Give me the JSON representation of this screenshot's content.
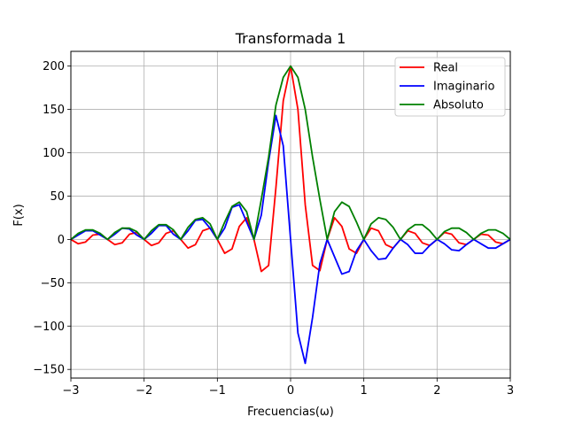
{
  "chart_data": {
    "type": "line",
    "title": "Transformada 1",
    "xlabel": "Frecuencias(ω)",
    "ylabel": "F(x)",
    "xlim": [
      -3,
      3
    ],
    "ylim": [
      -160,
      217
    ],
    "xticks": [
      -3,
      -2,
      -1,
      0,
      1,
      2,
      3
    ],
    "xtick_labels": [
      "−3",
      "−2",
      "−1",
      "0",
      "1",
      "2",
      "3"
    ],
    "yticks": [
      -150,
      -100,
      -50,
      0,
      50,
      100,
      150,
      200
    ],
    "ytick_labels": [
      "−150",
      "−100",
      "−50",
      "0",
      "50",
      "100",
      "150",
      "200"
    ],
    "grid": true,
    "legend_position": "top-right",
    "x": [
      -3.0,
      -2.9,
      -2.8,
      -2.7,
      -2.6,
      -2.5,
      -2.4,
      -2.3,
      -2.2,
      -2.1,
      -2.0,
      -1.9,
      -1.8,
      -1.7,
      -1.6,
      -1.5,
      -1.4,
      -1.3,
      -1.2,
      -1.1,
      -1.0,
      -0.9,
      -0.8,
      -0.7,
      -0.6,
      -0.5,
      -0.4,
      -0.3,
      -0.2,
      -0.1,
      0.0,
      0.1,
      0.2,
      0.3,
      0.4,
      0.5,
      0.6,
      0.7,
      0.8,
      0.9,
      1.0,
      1.1,
      1.2,
      1.3,
      1.4,
      1.5,
      1.6,
      1.7,
      1.8,
      1.9,
      2.0,
      2.1,
      2.2,
      2.3,
      2.4,
      2.5,
      2.6,
      2.7,
      2.8,
      2.9,
      3.0
    ],
    "series": [
      {
        "name": "Real",
        "color": "#ff0000",
        "values": [
          0,
          -5,
          -3,
          5,
          6,
          0,
          -6,
          -4,
          6,
          8,
          0,
          -7,
          -4,
          7,
          10,
          0,
          -10,
          -6,
          10,
          13,
          0,
          -16,
          -11,
          15,
          25,
          0,
          -37,
          -30,
          60,
          160,
          200,
          150,
          40,
          -30,
          -36,
          0,
          25,
          15,
          -11,
          -16,
          0,
          13,
          10,
          -6,
          -10,
          0,
          10,
          7,
          -4,
          -7,
          0,
          8,
          6,
          -4,
          -6,
          0,
          6,
          5,
          -3,
          -5,
          0
        ]
      },
      {
        "name": "Imaginario",
        "color": "#0000ff",
        "values": [
          0,
          5,
          10,
          10,
          5,
          0,
          6,
          13,
          12,
          5,
          0,
          7,
          16,
          16,
          6,
          0,
          10,
          22,
          23,
          13,
          0,
          13,
          37,
          40,
          20,
          0,
          28,
          90,
          143,
          108,
          0,
          -108,
          -143,
          -90,
          -28,
          0,
          -20,
          -40,
          -37,
          -13,
          0,
          -13,
          -23,
          -22,
          -10,
          0,
          -6,
          -16,
          -16,
          -7,
          0,
          -5,
          -12,
          -13,
          -6,
          0,
          -5,
          -10,
          -10,
          -5,
          0
        ]
      },
      {
        "name": "Absoluto",
        "color": "#008000",
        "values": [
          0,
          7,
          11,
          11,
          7,
          0,
          8,
          13,
          13,
          9,
          0,
          10,
          17,
          17,
          11,
          0,
          14,
          23,
          25,
          18,
          0,
          20,
          38,
          43,
          32,
          0,
          46,
          95,
          155,
          187,
          200,
          187,
          150,
          95,
          46,
          0,
          32,
          43,
          38,
          20,
          0,
          18,
          25,
          23,
          14,
          0,
          11,
          17,
          17,
          10,
          0,
          9,
          13,
          13,
          8,
          0,
          7,
          11,
          11,
          7,
          0
        ]
      }
    ]
  }
}
